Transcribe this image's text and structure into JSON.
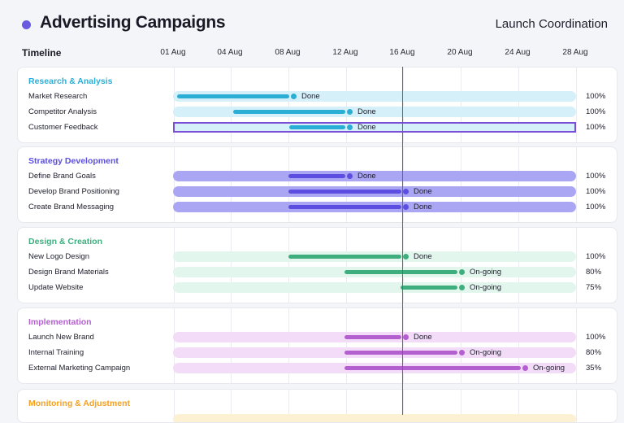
{
  "header": {
    "title": "Advertising Campaigns",
    "subtitle": "Launch Coordination"
  },
  "timeline": {
    "label": "Timeline",
    "dates": [
      "01 Aug",
      "04 Aug",
      "08 Aug",
      "12 Aug",
      "16 Aug",
      "20 Aug",
      "24 Aug",
      "28 Aug"
    ]
  },
  "sections": [
    {
      "title": "Research & Analysis",
      "color": "#2aaed6",
      "track_color": "#d5f0f8",
      "rows": [
        {
          "label": "Market Research",
          "status": "Done",
          "percent": "100%"
        },
        {
          "label": "Competitor Analysis",
          "status": "Done",
          "percent": "100%"
        },
        {
          "label": "Customer Feedback",
          "status": "Done",
          "percent": "100%"
        }
      ]
    },
    {
      "title": "Strategy Development",
      "color": "#5b4ee0",
      "track_color": "#aba6f3",
      "rows": [
        {
          "label": "Define Brand Goals",
          "status": "Done",
          "percent": "100%"
        },
        {
          "label": "Develop Brand Positioning",
          "status": "Done",
          "percent": "100%"
        },
        {
          "label": "Create Brand Messaging",
          "status": "Done",
          "percent": "100%"
        }
      ]
    },
    {
      "title": "Design & Creation",
      "color": "#3fae7e",
      "track_color": "#e3f6ee",
      "rows": [
        {
          "label": "New Logo Design",
          "status": "Done",
          "percent": "100%"
        },
        {
          "label": "Design Brand Materials",
          "status": "On-going",
          "percent": "80%"
        },
        {
          "label": "Update Website",
          "status": "On-going",
          "percent": "75%"
        }
      ]
    },
    {
      "title": "Implementation",
      "color": "#b45fd0",
      "track_color": "#f3dcf8",
      "rows": [
        {
          "label": "Launch New Brand",
          "status": "Done",
          "percent": "100%"
        },
        {
          "label": "Internal Training",
          "status": "On-going",
          "percent": "80%"
        },
        {
          "label": "External Marketing Campaign",
          "status": "On-going",
          "percent": "35%"
        }
      ]
    },
    {
      "title": "Monitoring & Adjustment",
      "color": "#f2a022",
      "track_color": "#fdf1d4",
      "rows": []
    }
  ]
}
